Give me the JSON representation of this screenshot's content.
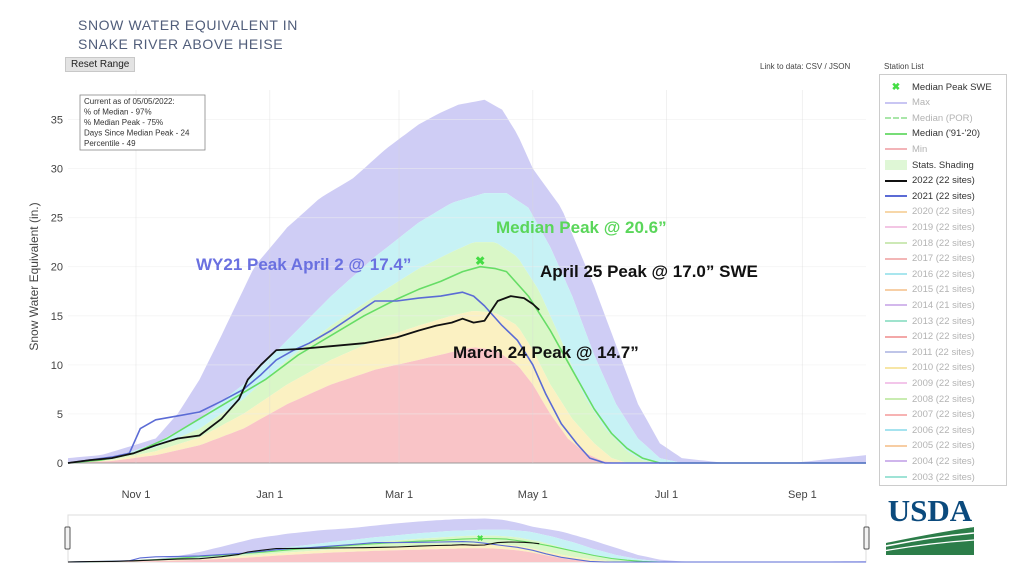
{
  "title": "SNOW WATER EQUIVALENT IN\nSNAKE RIVER ABOVE HEISE",
  "reset_label": "Reset Range",
  "link_text": "Link to data: CSV / JSON",
  "station_list_label": "Station List",
  "usda_text": "USDA",
  "colors": {
    "wy2022": "#111111",
    "wy2021": "#5b6bd5",
    "median_line": "#66dd66",
    "median_peak_marker": "#44dd44",
    "max_shade": "#cfcdf5",
    "upper_shade": "#c7f2f5",
    "mid_shade": "#d9f7c7",
    "lower_shade": "#fbf1c2",
    "min_shade": "#f9c4c7",
    "annotation_wy21": "#6a70e0",
    "annotation_median": "#5ad65a",
    "annotation_black": "#111111"
  },
  "stats_box": [
    "Current as of 05/05/2022:",
    "% of Median - 97%",
    "% Median Peak - 75%",
    "Days Since Median Peak - 24",
    "Percentile - 49"
  ],
  "legend": [
    {
      "label": "Median Peak SWE",
      "symbol": "x",
      "color": "#44dd44"
    },
    {
      "label": "Max",
      "symbol": "line",
      "color": "#c9c6f3"
    },
    {
      "label": "Median (POR)",
      "symbol": "dash",
      "color": "#a9e6a9"
    },
    {
      "label": "Median ('91-'20)",
      "symbol": "line",
      "color": "#77dd77"
    },
    {
      "label": "Min",
      "symbol": "line",
      "color": "#f3b4b8"
    },
    {
      "label": "Stats. Shading",
      "symbol": "box",
      "color": "#dff7d6"
    },
    {
      "label": "2022 (22 sites)",
      "symbol": "line",
      "color": "#111111"
    },
    {
      "label": "2021 (22 sites)",
      "symbol": "line",
      "color": "#5b6bd5"
    },
    {
      "label": "2020 (22 sites)",
      "symbol": "line",
      "color": "#f7d7a9"
    },
    {
      "label": "2019 (22 sites)",
      "symbol": "line",
      "color": "#f3c6e4"
    },
    {
      "label": "2018 (22 sites)",
      "symbol": "line",
      "color": "#cde9b6"
    },
    {
      "label": "2017 (22 sites)",
      "symbol": "line",
      "color": "#f3b6b6"
    },
    {
      "label": "2016 (22 sites)",
      "symbol": "line",
      "color": "#a9e6ee"
    },
    {
      "label": "2015 (21 sites)",
      "symbol": "line",
      "color": "#f7cfa6"
    },
    {
      "label": "2014 (21 sites)",
      "symbol": "line",
      "color": "#d3b8ec"
    },
    {
      "label": "2013 (22 sites)",
      "symbol": "line",
      "color": "#9fe3cd"
    },
    {
      "label": "2012 (22 sites)",
      "symbol": "line",
      "color": "#f3a8a8"
    },
    {
      "label": "2011 (22 sites)",
      "symbol": "line",
      "color": "#bfc5e8"
    },
    {
      "label": "2010 (22 sites)",
      "symbol": "line",
      "color": "#f7e6a6"
    },
    {
      "label": "2009 (22 sites)",
      "symbol": "line",
      "color": "#f3c6ea"
    },
    {
      "label": "2008 (22 sites)",
      "symbol": "line",
      "color": "#c9ecb1"
    },
    {
      "label": "2007 (22 sites)",
      "symbol": "line",
      "color": "#f7b3b3"
    },
    {
      "label": "2006 (22 sites)",
      "symbol": "line",
      "color": "#a6e3ef"
    },
    {
      "label": "2005 (22 sites)",
      "symbol": "line",
      "color": "#f7cda3"
    },
    {
      "label": "2004 (22 sites)",
      "symbol": "line",
      "color": "#cfb5ec"
    },
    {
      "label": "2003 (22 sites)",
      "symbol": "line",
      "color": "#9fe3d6"
    }
  ],
  "chart_data": {
    "type": "area",
    "ylabel": "Snow Water Equivalent (in.)",
    "xlabel": "",
    "ylim": [
      0,
      38
    ],
    "xlim": [
      0,
      364
    ],
    "yticks": [
      0,
      5,
      10,
      15,
      20,
      25,
      30,
      35
    ],
    "xticks": [
      {
        "label": "Nov 1",
        "day": 31
      },
      {
        "label": "Jan 1",
        "day": 92
      },
      {
        "label": "Mar 1",
        "day": 151
      },
      {
        "label": "May 1",
        "day": 212
      },
      {
        "label": "Jul 1",
        "day": 273
      },
      {
        "label": "Sep 1",
        "day": 335
      }
    ],
    "bands": {
      "max": [
        [
          0,
          0.5
        ],
        [
          15,
          0.8
        ],
        [
          30,
          1.8
        ],
        [
          40,
          2.5
        ],
        [
          50,
          5
        ],
        [
          60,
          8.5
        ],
        [
          70,
          13
        ],
        [
          85,
          20
        ],
        [
          100,
          24
        ],
        [
          115,
          27
        ],
        [
          130,
          29
        ],
        [
          145,
          32
        ],
        [
          160,
          34.5
        ],
        [
          170,
          35.7
        ],
        [
          178,
          36.5
        ],
        [
          190,
          37
        ],
        [
          198,
          36
        ],
        [
          205,
          33.5
        ],
        [
          212,
          30
        ],
        [
          225,
          26
        ],
        [
          240,
          18
        ],
        [
          250,
          12
        ],
        [
          260,
          6
        ],
        [
          270,
          2
        ],
        [
          280,
          0.5
        ],
        [
          300,
          0
        ],
        [
          330,
          0
        ],
        [
          364,
          0.8
        ]
      ],
      "upper": [
        [
          0,
          0.1
        ],
        [
          20,
          0.5
        ],
        [
          40,
          2
        ],
        [
          60,
          4.5
        ],
        [
          80,
          8
        ],
        [
          100,
          12.5
        ],
        [
          120,
          17
        ],
        [
          140,
          21
        ],
        [
          160,
          24.5
        ],
        [
          175,
          26.5
        ],
        [
          190,
          27.5
        ],
        [
          200,
          27.5
        ],
        [
          210,
          26
        ],
        [
          220,
          22
        ],
        [
          230,
          17
        ],
        [
          240,
          11
        ],
        [
          250,
          6
        ],
        [
          260,
          2.5
        ],
        [
          270,
          0.5
        ],
        [
          280,
          0
        ],
        [
          364,
          0
        ]
      ],
      "median_hi": [
        [
          0,
          0
        ],
        [
          20,
          0.4
        ],
        [
          40,
          1.6
        ],
        [
          60,
          3.5
        ],
        [
          80,
          6.5
        ],
        [
          100,
          10.5
        ],
        [
          120,
          14
        ],
        [
          140,
          17
        ],
        [
          160,
          19.8
        ],
        [
          175,
          21.5
        ],
        [
          185,
          22.5
        ],
        [
          195,
          22.5
        ],
        [
          205,
          21
        ],
        [
          215,
          17.5
        ],
        [
          225,
          12.5
        ],
        [
          235,
          7
        ],
        [
          245,
          3.5
        ],
        [
          255,
          1.2
        ],
        [
          262,
          0.3
        ],
        [
          270,
          0
        ],
        [
          364,
          0
        ]
      ],
      "median_lo": [
        [
          0,
          0
        ],
        [
          20,
          0.3
        ],
        [
          40,
          1.2
        ],
        [
          60,
          2.6
        ],
        [
          80,
          5
        ],
        [
          100,
          8
        ],
        [
          120,
          10.5
        ],
        [
          140,
          12.5
        ],
        [
          160,
          14
        ],
        [
          175,
          15
        ],
        [
          185,
          15.5
        ],
        [
          195,
          15.3
        ],
        [
          205,
          14
        ],
        [
          212,
          11.5
        ],
        [
          220,
          8
        ],
        [
          230,
          4.5
        ],
        [
          240,
          2
        ],
        [
          248,
          0.5
        ],
        [
          255,
          0
        ],
        [
          364,
          0
        ]
      ],
      "min": [
        [
          0,
          0
        ],
        [
          20,
          0.2
        ],
        [
          40,
          0.8
        ],
        [
          60,
          1.8
        ],
        [
          80,
          3.5
        ],
        [
          100,
          6
        ],
        [
          120,
          8
        ],
        [
          140,
          9.5
        ],
        [
          160,
          10.5
        ],
        [
          175,
          11.3
        ],
        [
          185,
          11.8
        ],
        [
          195,
          11.5
        ],
        [
          205,
          10
        ],
        [
          212,
          8
        ],
        [
          220,
          5
        ],
        [
          228,
          2.5
        ],
        [
          236,
          1
        ],
        [
          244,
          0.2
        ],
        [
          250,
          0
        ],
        [
          364,
          0
        ]
      ]
    },
    "series": [
      {
        "name": "Median ('91-'20)",
        "color": "#66dd66",
        "points": [
          [
            0,
            0
          ],
          [
            15,
            0.3
          ],
          [
            30,
            1
          ],
          [
            45,
            2.5
          ],
          [
            60,
            4.5
          ],
          [
            75,
            6.5
          ],
          [
            90,
            8.5
          ],
          [
            105,
            11
          ],
          [
            120,
            13
          ],
          [
            135,
            15
          ],
          [
            150,
            16.7
          ],
          [
            160,
            17.7
          ],
          [
            170,
            18.5
          ],
          [
            180,
            19.5
          ],
          [
            188,
            20
          ],
          [
            195,
            19.8
          ],
          [
            200,
            19.5
          ],
          [
            210,
            17
          ],
          [
            220,
            13.5
          ],
          [
            230,
            9.5
          ],
          [
            240,
            5.5
          ],
          [
            248,
            3
          ],
          [
            255,
            1.5
          ],
          [
            262,
            0.5
          ],
          [
            270,
            0
          ],
          [
            364,
            0
          ]
        ]
      },
      {
        "name": "2021 (22 sites)",
        "color": "#5b6bd5",
        "points": [
          [
            0,
            0
          ],
          [
            10,
            0.3
          ],
          [
            20,
            0.6
          ],
          [
            28,
            1
          ],
          [
            33,
            3.5
          ],
          [
            40,
            4.4
          ],
          [
            50,
            4.8
          ],
          [
            60,
            5.2
          ],
          [
            70,
            6.3
          ],
          [
            80,
            7.5
          ],
          [
            88,
            9
          ],
          [
            95,
            10.5
          ],
          [
            103,
            11.5
          ],
          [
            110,
            12.2
          ],
          [
            120,
            13.5
          ],
          [
            130,
            15
          ],
          [
            140,
            16.5
          ],
          [
            150,
            16.5
          ],
          [
            160,
            16.8
          ],
          [
            170,
            17
          ],
          [
            180,
            17.4
          ],
          [
            185,
            17
          ],
          [
            190,
            16
          ],
          [
            198,
            14
          ],
          [
            205,
            12.5
          ],
          [
            212,
            10
          ],
          [
            218,
            7
          ],
          [
            225,
            4
          ],
          [
            232,
            2
          ],
          [
            238,
            0.5
          ],
          [
            245,
            0
          ],
          [
            364,
            0
          ]
        ]
      },
      {
        "name": "2022 (22 sites)",
        "color": "#111111",
        "points": [
          [
            0,
            0
          ],
          [
            10,
            0.3
          ],
          [
            20,
            0.5
          ],
          [
            30,
            1
          ],
          [
            40,
            1.8
          ],
          [
            50,
            2.5
          ],
          [
            60,
            2.8
          ],
          [
            70,
            4.5
          ],
          [
            78,
            6.5
          ],
          [
            82,
            8.5
          ],
          [
            88,
            10
          ],
          [
            95,
            11.5
          ],
          [
            105,
            11.6
          ],
          [
            120,
            11.9
          ],
          [
            135,
            12.2
          ],
          [
            150,
            12.8
          ],
          [
            160,
            13.5
          ],
          [
            168,
            14
          ],
          [
            175,
            14.3
          ],
          [
            180,
            14.7
          ],
          [
            185,
            14.3
          ],
          [
            190,
            14.5
          ],
          [
            196,
            16.5
          ],
          [
            202,
            17
          ],
          [
            208,
            16.8
          ],
          [
            212,
            16.2
          ],
          [
            215,
            15.6
          ]
        ]
      }
    ],
    "median_peak": {
      "day": 188,
      "value": 20.6
    },
    "annotations": [
      {
        "text": "Median Peak @ 20.6”",
        "color": "#5ad65a"
      },
      {
        "text": "WY21 Peak April 2 @ 17.4”",
        "color": "#6a70e0"
      },
      {
        "text": "April 25 Peak @ 17.0” SWE",
        "color": "#111111"
      },
      {
        "text": "March 24 Peak @ 14.7”",
        "color": "#111111"
      }
    ]
  }
}
